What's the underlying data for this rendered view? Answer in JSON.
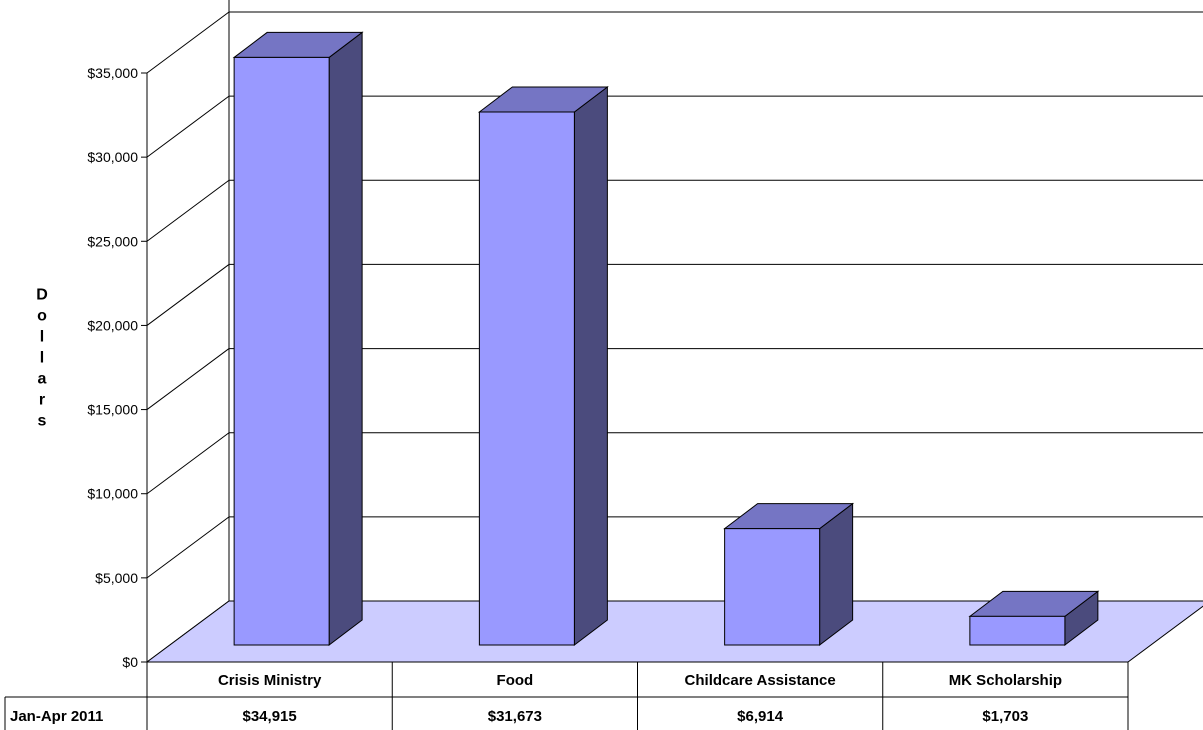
{
  "chart_data": {
    "type": "bar",
    "title": "",
    "xlabel": "",
    "ylabel": "Dollars",
    "ylim": [
      0,
      35000
    ],
    "y_tick_step": 5000,
    "y_tick_prefix": "$",
    "grid": true,
    "three_d": true,
    "categories": [
      "Crisis Ministry",
      "Food",
      "Childcare Assistance",
      "MK Scholarship"
    ],
    "series": [
      {
        "name": "Jan-Apr 2011",
        "values": [
          34915,
          31673,
          6914,
          1703
        ],
        "labels": [
          "$34,915",
          "$31,673",
          "$6,914",
          "$1,703"
        ]
      }
    ],
    "y_tick_labels": [
      "$0",
      "$5,000",
      "$10,000",
      "$15,000",
      "$20,000",
      "$25,000",
      "$30,000",
      "$35,000"
    ],
    "colors": {
      "bar_front": "#9999ff",
      "bar_side": "#4b4b7d",
      "bar_top": "#7575c4",
      "floor": "#ccccff",
      "gridline": "#000000"
    }
  }
}
